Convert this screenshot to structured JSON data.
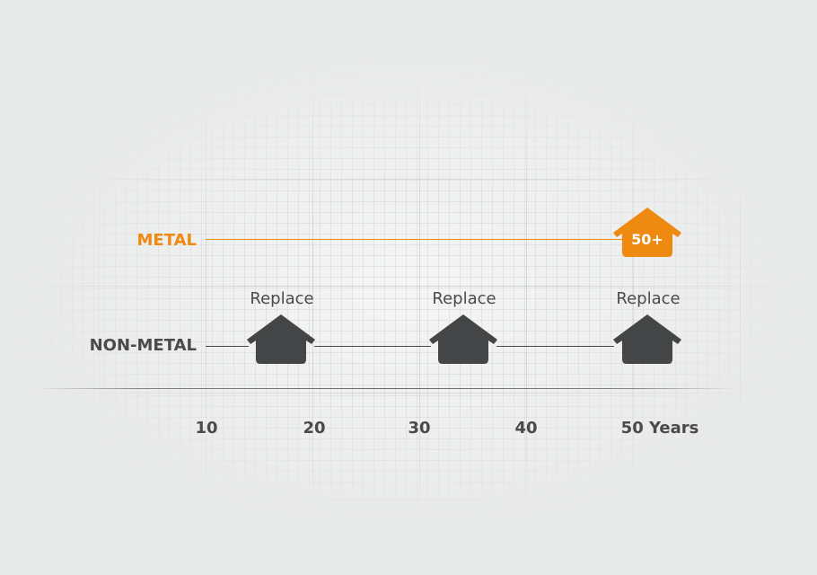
{
  "colors": {
    "metal": "#ee8a10",
    "non_metal": "#444546",
    "text_dark": "#4a4a4a",
    "background": "#e8e9e9"
  },
  "rows": {
    "metal": {
      "label": "METAL",
      "house_badge": "50+",
      "icon": "house-icon"
    },
    "non_metal": {
      "label": "NON-METAL",
      "icon": "house-icon",
      "replacements": [
        "Replace",
        "Replace",
        "Replace"
      ]
    }
  },
  "axis": {
    "ticks": [
      "10",
      "20",
      "30",
      "40",
      "50 Years"
    ]
  }
}
